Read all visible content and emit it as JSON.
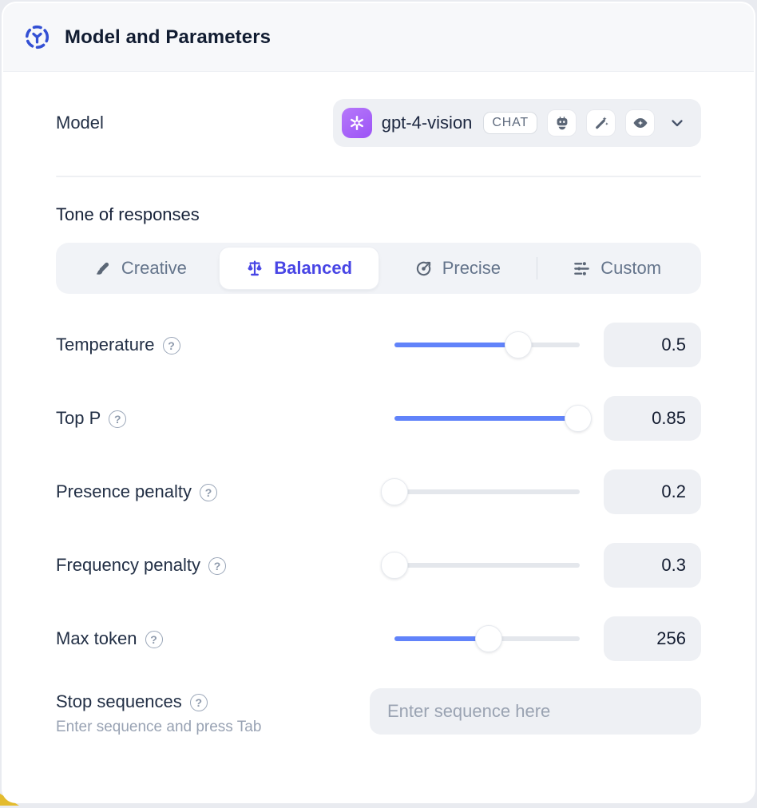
{
  "header": {
    "title": "Model and Parameters"
  },
  "model": {
    "label": "Model",
    "name": "gpt-4-vision",
    "type_badge": "CHAT",
    "capability_icons": [
      "robot-icon",
      "magic-wand-icon",
      "eye-icon"
    ]
  },
  "tone": {
    "heading": "Tone of responses",
    "tabs": [
      {
        "label": "Creative",
        "icon": "paintbrush-icon",
        "selected": false
      },
      {
        "label": "Balanced",
        "icon": "balance-scale-icon",
        "selected": true
      },
      {
        "label": "Precise",
        "icon": "target-icon",
        "selected": false
      },
      {
        "label": "Custom",
        "icon": "sliders-icon",
        "selected": false
      }
    ]
  },
  "parameters": [
    {
      "label": "Temperature",
      "value": "0.5",
      "fill_pct": 67
    },
    {
      "label": "Top P",
      "value": "0.85",
      "fill_pct": 99
    },
    {
      "label": "Presence penalty",
      "value": "0.2",
      "fill_pct": 0
    },
    {
      "label": "Frequency penalty",
      "value": "0.3",
      "fill_pct": 0
    },
    {
      "label": "Max token",
      "value": "256",
      "fill_pct": 51
    }
  ],
  "stop_sequences": {
    "label": "Stop sequences",
    "hint": "Enter sequence and press Tab",
    "placeholder": "Enter sequence here"
  },
  "help_glyph": "?",
  "colors": {
    "accent": "#4845e5",
    "slider": "#6183fa",
    "header_icon": "#3450d4",
    "icon_slate": "#5b6676",
    "wedge": "#e3bb2e",
    "model_logo": "#a75ef8"
  }
}
